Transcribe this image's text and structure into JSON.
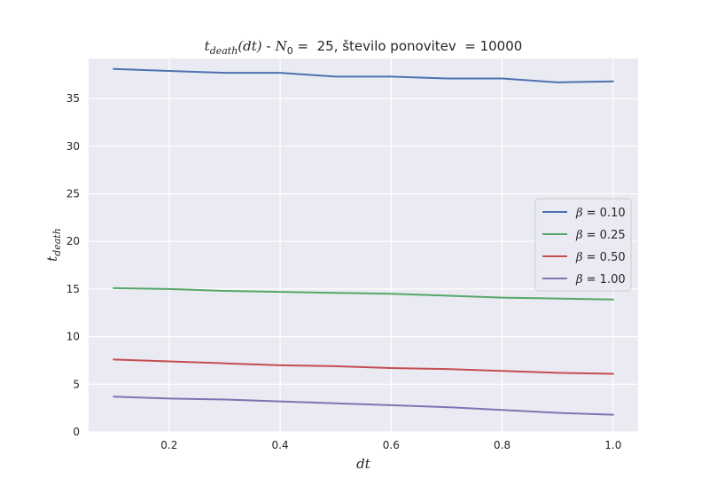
{
  "chart_data": {
    "type": "line",
    "title": {
      "lhs": "t",
      "lhs_sub": "death",
      "lhs_arg": "(dt)",
      "sep": " - ",
      "n_var": "N",
      "n_sub": "0",
      "n_eq": " =  25, število ponovitev  = 10000"
    },
    "xlabel": "dt",
    "ylabel": {
      "base": "t",
      "sub": "death"
    },
    "xlim": [
      0.055,
      1.045
    ],
    "ylim": [
      0,
      39.2
    ],
    "xticks": [
      0.2,
      0.4,
      0.6,
      0.8,
      1.0
    ],
    "xtick_labels": [
      "0.2",
      "0.4",
      "0.6",
      "0.8",
      "1.0"
    ],
    "yticks": [
      0,
      5,
      10,
      15,
      20,
      25,
      30,
      35
    ],
    "ytick_labels": [
      "0",
      "5",
      "10",
      "15",
      "20",
      "25",
      "30",
      "35"
    ],
    "grid": true,
    "legend_position": "center-right",
    "x": [
      0.1,
      0.2,
      0.3,
      0.4,
      0.5,
      0.6,
      0.7,
      0.8,
      0.9,
      1.0
    ],
    "series": [
      {
        "name": "β =  0.10",
        "greek": "β",
        "rest": " =  0.10",
        "color": "#4c72b0",
        "values": [
          38.1,
          37.9,
          37.7,
          37.7,
          37.3,
          37.3,
          37.1,
          37.1,
          36.7,
          36.8
        ]
      },
      {
        "name": "β =  0.25",
        "greek": "β",
        "rest": " =  0.25",
        "color": "#55a868",
        "values": [
          15.1,
          15.0,
          14.8,
          14.7,
          14.6,
          14.5,
          14.3,
          14.1,
          14.0,
          13.9
        ]
      },
      {
        "name": "β =  0.50",
        "greek": "β",
        "rest": " =  0.50",
        "color": "#c44e52",
        "values": [
          7.6,
          7.4,
          7.2,
          7.0,
          6.9,
          6.7,
          6.6,
          6.4,
          6.2,
          6.1
        ]
      },
      {
        "name": "β =  1.00",
        "greek": "β",
        "rest": " =  1.00",
        "color": "#8172b2",
        "values": [
          3.7,
          3.5,
          3.4,
          3.2,
          3.0,
          2.8,
          2.6,
          2.3,
          2.0,
          1.8
        ]
      }
    ],
    "colors": {
      "background": "#eaeaf2",
      "grid": "#ffffff",
      "text": "#262626"
    }
  }
}
